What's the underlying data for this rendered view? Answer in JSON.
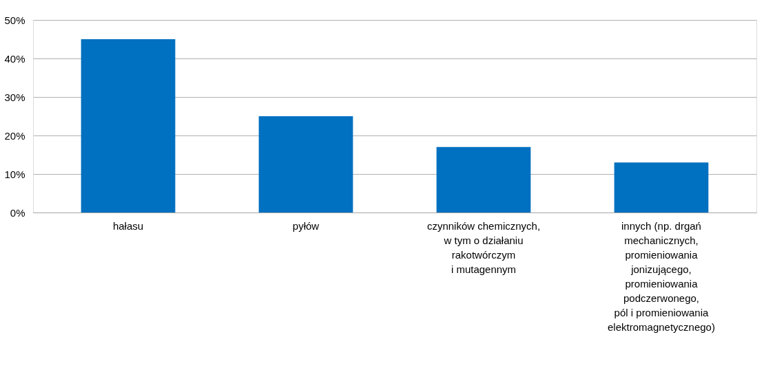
{
  "chart_data": {
    "type": "bar",
    "categories": [
      "hałasu",
      "pyłów",
      "czynników chemicznych,\nw tym o działaniu\nrakotwórczym\ni mutagennym",
      "innych (np. drgań\nmechanicznych,\npromieniowania\njonizującego,\npromieniowania\npodczerwonego,\npól i promieniowania\nelektromagnetycznego)"
    ],
    "values": [
      45,
      25,
      17,
      13
    ],
    "color": "#0070c0",
    "ylim": [
      0,
      50
    ],
    "yticks": [
      {
        "value": 0,
        "label": "0%"
      },
      {
        "value": 10,
        "label": "10%"
      },
      {
        "value": 20,
        "label": "20%"
      },
      {
        "value": 30,
        "label": "30%"
      },
      {
        "value": 40,
        "label": "40%"
      },
      {
        "value": 50,
        "label": "50%"
      }
    ],
    "grid": "y"
  }
}
